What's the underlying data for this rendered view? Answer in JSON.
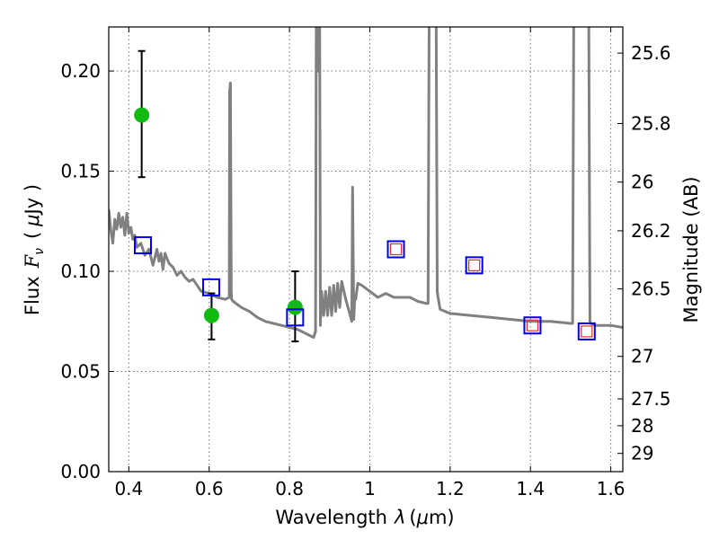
{
  "chart_data": {
    "type": "scatter",
    "xlabel": "Wavelength",
    "xlabel_symbol": "λ",
    "xlabel_unit_open": "(",
    "xlabel_unit_mu": "μ",
    "xlabel_unit_close": "m)",
    "ylabel": "Flux",
    "ylabel_symbol": "F",
    "ylabel_sub": "ν",
    "ylabel_unit_open": "(",
    "ylabel_unit_mu": "μ",
    "ylabel_unit_close": "Jy )",
    "y2label": "Magnitude (AB)",
    "xlim": [
      0.35,
      1.63
    ],
    "ylim": [
      0.0,
      0.222
    ],
    "grid": true,
    "x_ticks": [
      0.4,
      0.6,
      0.8,
      1.0,
      1.2,
      1.4,
      1.6
    ],
    "x_tick_labels": [
      "0.4",
      "0.6",
      "0.8",
      "1",
      "1.2",
      "1.4",
      "1.6"
    ],
    "y_ticks": [
      0.0,
      0.05,
      0.1,
      0.15,
      0.2
    ],
    "y_tick_labels": [
      "0.00",
      "0.05",
      "0.10",
      "0.15",
      "0.20"
    ],
    "y2_ticks": [
      25.6,
      25.8,
      26,
      26.2,
      26.5,
      27,
      27.5,
      28,
      29
    ],
    "y2_tick_labels": [
      "25.6",
      "25.8",
      "26",
      "26.2",
      "26.5",
      "27",
      "27.5",
      "28",
      "29"
    ],
    "model_spectrum": {
      "x": [
        0.35,
        0.355,
        0.36,
        0.365,
        0.37,
        0.375,
        0.38,
        0.385,
        0.39,
        0.395,
        0.4,
        0.405,
        0.41,
        0.415,
        0.42,
        0.43,
        0.44,
        0.45,
        0.46,
        0.47,
        0.475,
        0.48,
        0.485,
        0.49,
        0.5,
        0.51,
        0.52,
        0.53,
        0.54,
        0.55,
        0.56,
        0.57,
        0.58,
        0.6,
        0.62,
        0.64,
        0.65,
        0.651,
        0.653,
        0.655,
        0.656,
        0.66,
        0.68,
        0.7,
        0.72,
        0.74,
        0.76,
        0.78,
        0.8,
        0.82,
        0.84,
        0.85,
        0.86,
        0.865,
        0.867,
        0.869,
        0.871,
        0.873,
        0.875,
        0.877,
        0.878,
        0.88,
        0.885,
        0.89,
        0.895,
        0.9,
        0.905,
        0.91,
        0.915,
        0.92,
        0.925,
        0.93,
        0.94,
        0.95,
        0.955,
        0.957,
        0.96,
        0.963,
        0.965,
        0.97,
        0.98,
        1.0,
        1.02,
        1.04,
        1.06,
        1.08,
        1.1,
        1.12,
        1.14,
        1.145,
        1.148,
        1.15,
        1.165,
        1.168,
        1.17,
        1.175,
        1.2,
        1.25,
        1.3,
        1.35,
        1.4,
        1.45,
        1.5,
        1.505,
        1.508,
        1.51,
        1.545,
        1.548,
        1.55,
        1.56,
        1.6,
        1.63
      ],
      "y": [
        0.131,
        0.121,
        0.114,
        0.126,
        0.121,
        0.129,
        0.122,
        0.127,
        0.118,
        0.129,
        0.119,
        0.122,
        0.116,
        0.118,
        0.112,
        0.114,
        0.108,
        0.111,
        0.103,
        0.111,
        0.105,
        0.109,
        0.101,
        0.109,
        0.104,
        0.102,
        0.098,
        0.1,
        0.097,
        0.095,
        0.096,
        0.093,
        0.09,
        0.089,
        0.087,
        0.086,
        0.087,
        0.19,
        0.194,
        0.09,
        0.086,
        0.085,
        0.082,
        0.08,
        0.077,
        0.075,
        0.074,
        0.073,
        0.072,
        0.071,
        0.069,
        0.068,
        0.067,
        0.07,
        0.24,
        0.24,
        0.2,
        0.24,
        0.24,
        0.073,
        0.082,
        0.09,
        0.078,
        0.09,
        0.078,
        0.092,
        0.078,
        0.093,
        0.08,
        0.094,
        0.082,
        0.095,
        0.086,
        0.079,
        0.075,
        0.142,
        0.076,
        0.088,
        0.086,
        0.094,
        0.093,
        0.09,
        0.087,
        0.089,
        0.087,
        0.087,
        0.087,
        0.085,
        0.084,
        0.084,
        0.24,
        0.24,
        0.24,
        0.09,
        0.087,
        0.081,
        0.079,
        0.078,
        0.077,
        0.076,
        0.075,
        0.075,
        0.074,
        0.074,
        0.24,
        0.24,
        0.24,
        0.075,
        0.074,
        0.073,
        0.073,
        0.072
      ]
    },
    "observed_points": {
      "x": [
        0.432,
        0.606,
        0.814
      ],
      "y": [
        0.178,
        0.078,
        0.082
      ],
      "err_low": [
        0.147,
        0.066,
        0.065
      ],
      "err_high": [
        0.21,
        0.089,
        0.1
      ]
    },
    "model_photometry": {
      "x": [
        0.435,
        0.605,
        0.814,
        1.065,
        1.26,
        1.405,
        1.54
      ],
      "y": [
        0.113,
        0.092,
        0.077,
        0.111,
        0.103,
        0.073,
        0.07
      ]
    },
    "filter_photometry": {
      "x": [
        1.065,
        1.26,
        1.405,
        1.54
      ],
      "y": [
        0.111,
        0.103,
        0.073,
        0.07
      ]
    },
    "colors": {
      "spectrum": "#808080",
      "observed": "#11bb11",
      "model_box": "#0000ee",
      "filter_box": "#e03030",
      "error_bar": "#000000"
    }
  }
}
